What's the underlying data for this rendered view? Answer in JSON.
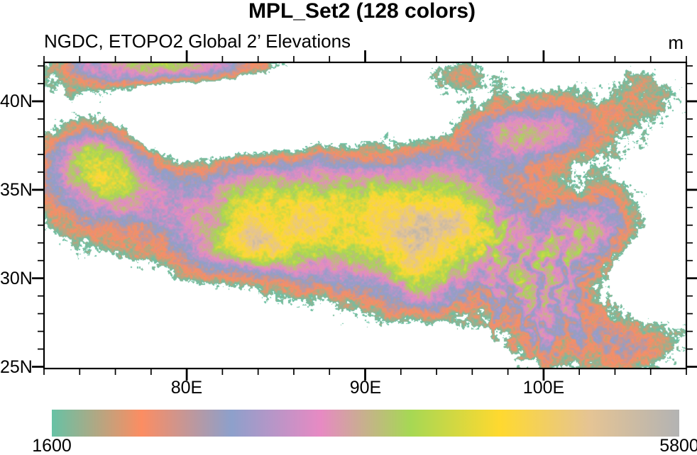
{
  "title": "MPL_Set2 (128 colors)",
  "subtitle_left": "NGDC, ETOPO2 Global 2’ Elevations",
  "units_label": "m",
  "axes": {
    "x_ticks": [
      {
        "value": 80,
        "label": "80E"
      },
      {
        "value": 90,
        "label": "90E"
      },
      {
        "value": 100,
        "label": "100E"
      }
    ],
    "y_ticks": [
      {
        "value": 25,
        "label": "25N"
      },
      {
        "value": 30,
        "label": "30N"
      },
      {
        "value": 35,
        "label": "35N"
      },
      {
        "value": 40,
        "label": "40N"
      }
    ],
    "x_minor_step_deg": 2,
    "y_minor_step_deg": 1
  },
  "colorbar": {
    "min_label": "1600",
    "max_label": "5800"
  },
  "chart_data": {
    "type": "heatmap",
    "title": "MPL_Set2 (128 colors)",
    "subtitle": "NGDC, ETOPO2 Global 2’ Elevations",
    "units": "m",
    "lon_range": [
      72,
      108
    ],
    "lat_range": [
      24.9,
      42.2
    ],
    "x_tick_values": [
      80,
      90,
      100
    ],
    "y_tick_values": [
      25,
      30,
      35,
      40
    ],
    "value_range": [
      1600,
      5800
    ],
    "n_colors": 128,
    "palette_name": "MPL_Set2",
    "palette": [
      "#66C2A5",
      "#FC8D62",
      "#8DA0CB",
      "#E78AC3",
      "#A6D854",
      "#FFD92F",
      "#E5C494",
      "#B3B3B3"
    ],
    "below_min_color": "#FFFFFF",
    "frame_color": "#000000",
    "region": "Tibetan Plateau elevation, values below 1600 m shown white"
  }
}
